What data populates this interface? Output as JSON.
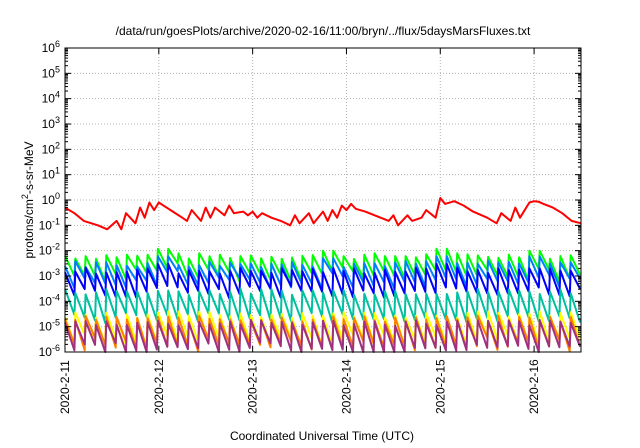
{
  "chart_data": {
    "type": "line",
    "title": "/data/run/goesPlots/archive/2020-02-16/11:00/bryn/../flux/5daysMarsFluxes.txt",
    "xlabel": "Coordinated Universal Time (UTC)",
    "ylabel_base": "protons/cm",
    "ylabel_sup": "2",
    "ylabel_rest": "-s-sr-MeV",
    "y_scale": "log",
    "ylim": [
      1e-06,
      1000000.0
    ],
    "xlim": [
      0,
      5.5
    ],
    "grid": true,
    "y_ticks": [
      {
        "base": "10",
        "exp": "-6",
        "value": 1e-06
      },
      {
        "base": "10",
        "exp": "-5",
        "value": 1e-05
      },
      {
        "base": "10",
        "exp": "-4",
        "value": 0.0001
      },
      {
        "base": "10",
        "exp": "-3",
        "value": 0.001
      },
      {
        "base": "10",
        "exp": "-2",
        "value": 0.01
      },
      {
        "base": "10",
        "exp": "-1",
        "value": 0.1
      },
      {
        "base": "10",
        "exp": "0",
        "value": 1
      },
      {
        "base": "10",
        "exp": "1",
        "value": 10.0
      },
      {
        "base": "10",
        "exp": "2",
        "value": 100.0
      },
      {
        "base": "10",
        "exp": "3",
        "value": 1000.0
      },
      {
        "base": "10",
        "exp": "4",
        "value": 10000.0
      },
      {
        "base": "10",
        "exp": "5",
        "value": 100000.0
      },
      {
        "base": "10",
        "exp": "6",
        "value": 1000000.0
      }
    ],
    "x_ticks": [
      {
        "label": "2020-2-11",
        "value": 0
      },
      {
        "label": "2020-2-12",
        "value": 1
      },
      {
        "label": "2020-2-13",
        "value": 2
      },
      {
        "label": "2020-2-14",
        "value": 3
      },
      {
        "label": "2020-2-15",
        "value": 4
      },
      {
        "label": "2020-2-16",
        "value": 5
      }
    ],
    "x_unit": "days since 2020-2-11",
    "series": [
      {
        "color": "#ff0000",
        "x": [
          0,
          0.1,
          0.2,
          0.35,
          0.45,
          0.55,
          0.6,
          0.65,
          0.75,
          0.8,
          0.85,
          0.9,
          0.95,
          1.0,
          1.05,
          1.15,
          1.25,
          1.3,
          1.35,
          1.45,
          1.5,
          1.55,
          1.6,
          1.7,
          1.75,
          1.8,
          1.9,
          1.95,
          2.0,
          2.05,
          2.1,
          2.2,
          2.3,
          2.4,
          2.45,
          2.5,
          2.6,
          2.65,
          2.75,
          2.8,
          2.85,
          2.9,
          2.95,
          3.0,
          3.05,
          3.1,
          3.2,
          3.3,
          3.45,
          3.5,
          3.55,
          3.65,
          3.7,
          3.8,
          3.85,
          3.95,
          4.0,
          4.05,
          4.15,
          4.25,
          4.35,
          4.5,
          4.6,
          4.65,
          4.75,
          4.8,
          4.85,
          4.95,
          5.0,
          5.05,
          5.1,
          5.2,
          5.3,
          5.4,
          5.5
        ],
        "values": [
          0.5,
          0.3,
          0.15,
          0.1,
          0.07,
          0.15,
          0.07,
          0.3,
          0.12,
          0.5,
          0.2,
          0.8,
          0.4,
          0.8,
          0.6,
          0.35,
          0.2,
          0.15,
          0.4,
          0.15,
          0.5,
          0.2,
          0.5,
          0.25,
          0.6,
          0.3,
          0.35,
          0.25,
          0.35,
          0.2,
          0.3,
          0.2,
          0.15,
          0.1,
          0.25,
          0.12,
          0.3,
          0.12,
          0.35,
          0.15,
          0.4,
          0.2,
          0.6,
          0.4,
          0.7,
          0.45,
          0.35,
          0.25,
          0.15,
          0.25,
          0.1,
          0.25,
          0.15,
          0.2,
          0.4,
          0.2,
          1.2,
          0.7,
          0.9,
          0.6,
          0.35,
          0.2,
          0.12,
          0.3,
          0.15,
          0.5,
          0.2,
          0.8,
          0.9,
          0.85,
          0.7,
          0.5,
          0.3,
          0.15,
          0.12
        ]
      },
      {
        "color": "#00ff00",
        "base": 0.003,
        "depth": 6,
        "spikes": [
          [
            1.0,
            0.012
          ],
          [
            2.85,
            0.01
          ],
          [
            4.0,
            0.012
          ],
          [
            5.0,
            0.01
          ]
        ]
      },
      {
        "color": "#0080ff",
        "base": 0.0015,
        "depth": 6,
        "spikes": [
          [
            1.0,
            0.006
          ],
          [
            2.85,
            0.005
          ],
          [
            4.0,
            0.006
          ],
          [
            5.0,
            0.006
          ]
        ]
      },
      {
        "color": "#0000ff",
        "base": 0.0008,
        "depth": 8,
        "spikes": [
          [
            1.0,
            0.003
          ],
          [
            4.0,
            0.003
          ],
          [
            5.0,
            0.002
          ]
        ]
      },
      {
        "color": "#00c0a0",
        "base": 0.00012,
        "depth": 12,
        "spikes": []
      },
      {
        "color": "#ffff00",
        "base": 1.5e-05,
        "depth": 12,
        "spikes": []
      },
      {
        "color": "#ff8000",
        "base": 1e-05,
        "depth": 12,
        "spikes": []
      },
      {
        "color": "#a03080",
        "base": 7e-06,
        "depth": 12,
        "spikes": []
      }
    ]
  }
}
